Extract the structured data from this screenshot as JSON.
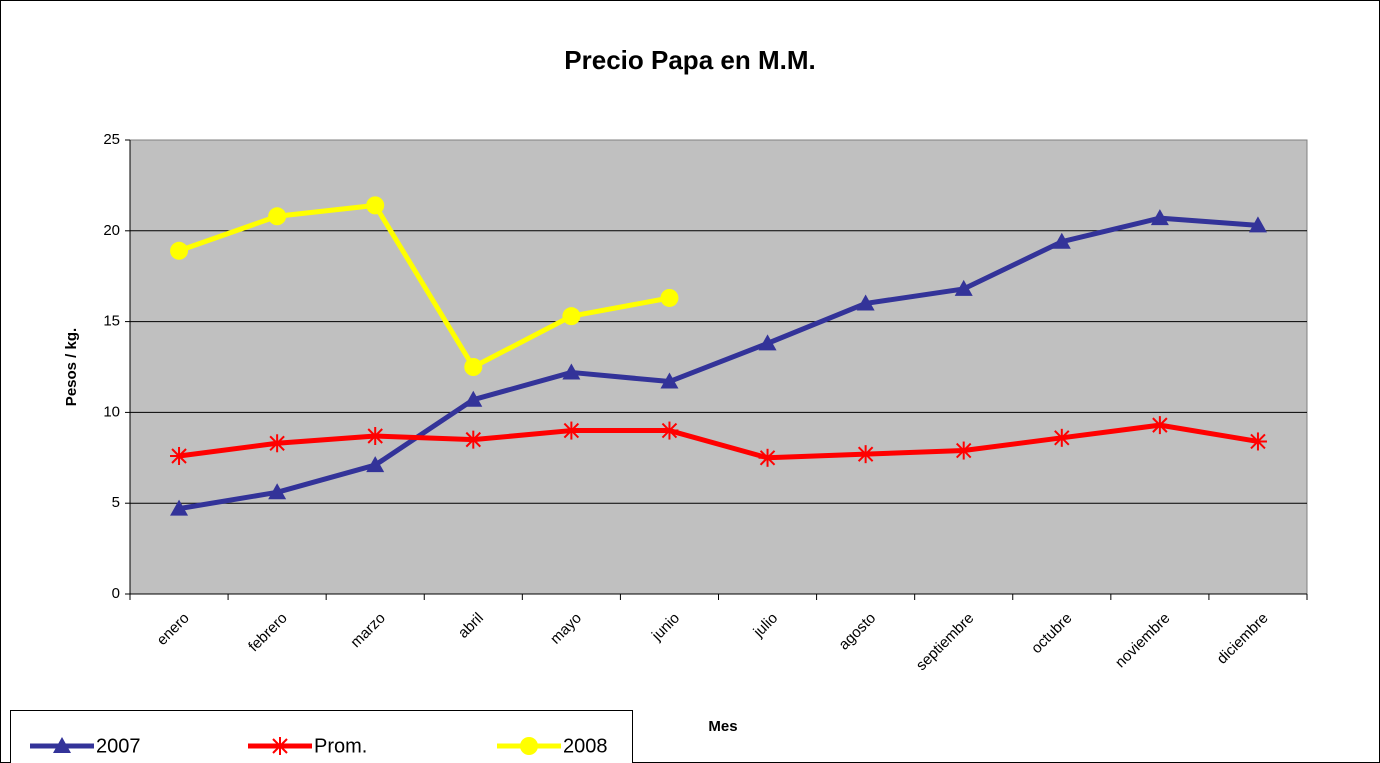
{
  "chart_data": {
    "type": "line",
    "title": "Precio Papa en M.M.",
    "x_label": "Mes",
    "y_label": "Pesos / kg.",
    "categories": [
      "enero",
      "febrero",
      "marzo",
      "abril",
      "mayo",
      "junio",
      "julio",
      "agosto",
      "septiembre",
      "octubre",
      "noviembre",
      "diciembre"
    ],
    "series": [
      {
        "name": "2007",
        "color": "#333399",
        "marker": "triangle",
        "values": [
          4.7,
          5.6,
          7.1,
          10.7,
          12.2,
          11.7,
          13.8,
          16.0,
          16.8,
          19.4,
          20.7,
          20.3
        ]
      },
      {
        "name": "Prom.",
        "color": "#ff0000",
        "marker": "asterisk",
        "values": [
          7.6,
          8.3,
          8.7,
          8.5,
          9.0,
          9.0,
          7.5,
          7.7,
          7.9,
          8.6,
          9.3,
          8.4
        ]
      },
      {
        "name": "2008",
        "color": "#ffff00",
        "marker": "circle",
        "values": [
          18.9,
          20.8,
          21.4,
          12.5,
          15.3,
          16.3,
          null,
          null,
          null,
          null,
          null,
          null
        ]
      }
    ],
    "ylim": [
      0,
      25
    ],
    "yticks": [
      0,
      5,
      10,
      15,
      20,
      25
    ],
    "grid": true,
    "legend": "bottom-left"
  }
}
